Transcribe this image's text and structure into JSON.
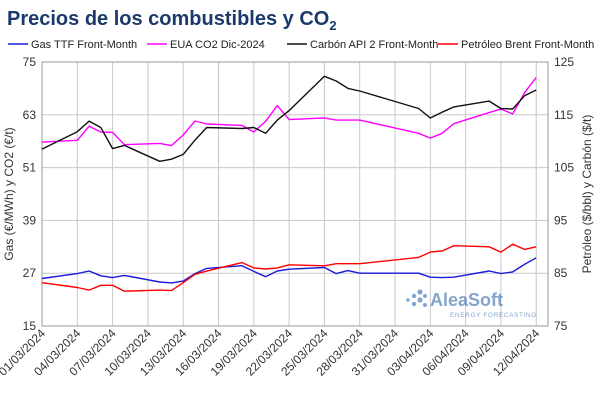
{
  "chart_data": {
    "type": "line",
    "title": "Precios de los combustibles y CO",
    "title_subscript": "2",
    "x": [
      "01/03/2024",
      "04/03/2024",
      "05/03/2024",
      "06/03/2024",
      "07/03/2024",
      "08/03/2024",
      "11/03/2024",
      "12/03/2024",
      "13/03/2024",
      "14/03/2024",
      "15/03/2024",
      "18/03/2024",
      "19/03/2024",
      "20/03/2024",
      "21/03/2024",
      "22/03/2024",
      "25/03/2024",
      "26/03/2024",
      "27/03/2024",
      "28/03/2024",
      "02/04/2024",
      "03/04/2024",
      "04/04/2024",
      "05/04/2024",
      "08/04/2024",
      "09/04/2024",
      "10/04/2024",
      "11/04/2024",
      "12/04/2024"
    ],
    "x_ticks": [
      "01/03/2024",
      "04/03/2024",
      "07/03/2024",
      "10/03/2024",
      "13/03/2024",
      "16/03/2024",
      "19/03/2024",
      "22/03/2024",
      "25/03/2024",
      "28/03/2024",
      "31/03/2024",
      "03/04/2024",
      "06/04/2024",
      "09/04/2024",
      "12/04/2024"
    ],
    "x_range": [
      "01/03/2024",
      "13/04/2024"
    ],
    "left_axis": {
      "label": "Gas (€/MWh) y CO2 (€/t)",
      "ylim": [
        15,
        75
      ],
      "ticks": [
        15,
        27,
        39,
        51,
        63,
        75
      ]
    },
    "right_axis": {
      "label": "Petróleo ($/bbl) y Carbón ($/t)",
      "ylim": [
        75,
        125
      ],
      "ticks": [
        75,
        85,
        95,
        105,
        115,
        125
      ]
    },
    "grid": true,
    "legend_position": "top",
    "series": [
      {
        "name": "Gas TTF Front-Month",
        "axis": "left",
        "color": "#1a1adb",
        "values": [
          25.8,
          26.9,
          27.5,
          26.4,
          26.0,
          26.5,
          25.0,
          24.8,
          25.2,
          26.9,
          28.1,
          28.7,
          27.4,
          26.2,
          27.5,
          27.9,
          28.3,
          26.9,
          27.6,
          27.0,
          27.0,
          26.1,
          26.0,
          26.1,
          27.5,
          26.9,
          27.3,
          29.0,
          30.5
        ]
      },
      {
        "name": "EUA CO2 Dic-2024",
        "axis": "left",
        "color": "#ff00ff",
        "values": [
          56.8,
          57.2,
          60.4,
          59.1,
          59.0,
          56.2,
          56.5,
          56.0,
          58.4,
          61.6,
          60.9,
          60.6,
          59.1,
          61.5,
          65.1,
          61.9,
          62.3,
          61.8,
          61.8,
          61.8,
          58.8,
          57.7,
          58.8,
          61.0,
          63.5,
          64.3,
          63.2,
          68.0,
          71.5
        ]
      },
      {
        "name": "Carbón API 2 Front-Month",
        "axis": "right",
        "color": "#111111",
        "values": [
          108.5,
          111.8,
          113.8,
          112.6,
          108.6,
          109.2,
          106.2,
          106.6,
          107.5,
          110.2,
          112.6,
          112.4,
          112.6,
          111.5,
          114.0,
          115.8,
          122.3,
          121.4,
          120.0,
          119.5,
          116.2,
          114.4,
          115.5,
          116.5,
          117.6,
          116.2,
          116.1,
          118.6,
          119.7
        ]
      },
      {
        "name": "Petróleo Brent Front-Month",
        "axis": "right",
        "color": "#ff0000",
        "values": [
          83.2,
          82.3,
          81.8,
          82.7,
          82.7,
          81.6,
          81.8,
          81.7,
          83.2,
          84.8,
          85.4,
          87.0,
          86.0,
          85.8,
          86.0,
          86.6,
          86.4,
          86.8,
          86.8,
          86.8,
          88.0,
          89.0,
          89.2,
          90.2,
          90.0,
          89.0,
          90.5,
          89.5,
          90.0
        ]
      }
    ]
  },
  "watermark": {
    "name": "AleaSoft",
    "sub": "ENERGY FORECASTING"
  }
}
